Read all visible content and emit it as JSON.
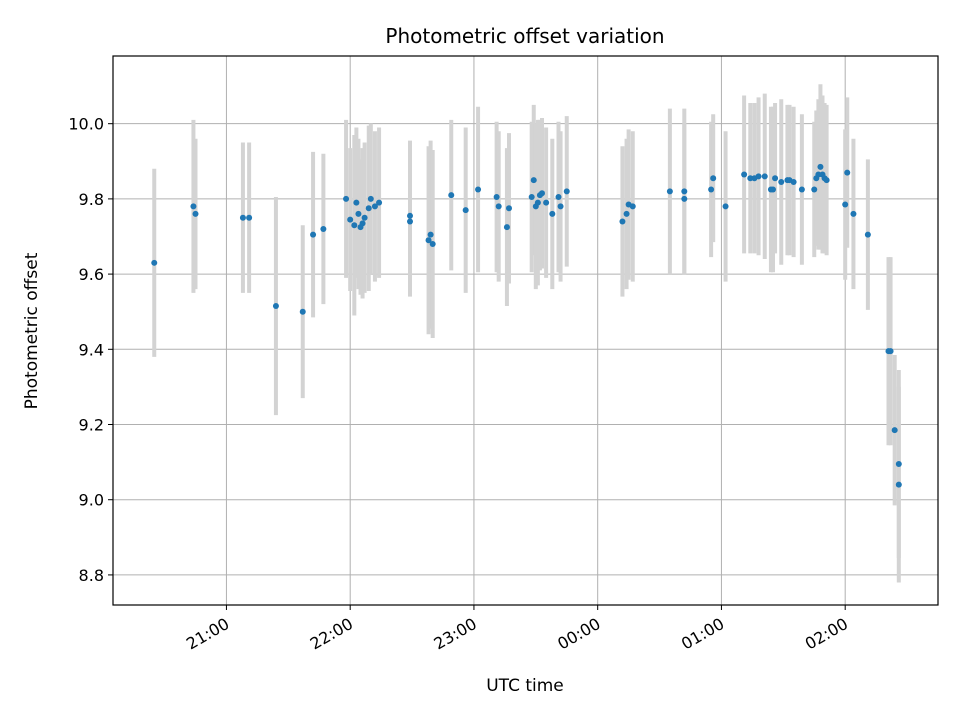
{
  "chart_data": {
    "type": "scatter",
    "title": "Photometric offset variation",
    "xlabel": "UTC time",
    "ylabel": "Photometric offset",
    "x_ticks": [
      "21:00",
      "22:00",
      "23:00",
      "00:00",
      "01:00",
      "02:00"
    ],
    "y_ticks": [
      "8.8",
      "9.0",
      "9.2",
      "9.4",
      "9.6",
      "9.8",
      "10.0"
    ],
    "ylim": [
      8.72,
      10.18
    ],
    "xlim": [
      "20:05",
      "02:45"
    ],
    "grid": true,
    "colors": {
      "marker": "#1f77b4",
      "errorbar": "#d3d3d3",
      "grid": "#b0b0b0"
    },
    "series": [
      {
        "x": [
          "20:25",
          "20:44",
          "20:45",
          "21:08",
          "21:11",
          "21:24",
          "21:37",
          "21:42",
          "21:47",
          "21:58",
          "22:00",
          "22:02",
          "22:03",
          "22:04",
          "22:05",
          "22:06",
          "22:07",
          "22:09",
          "22:10",
          "22:12",
          "22:14",
          "22:29",
          "22:29",
          "22:38",
          "22:39",
          "22:40",
          "22:49",
          "22:56",
          "23:02",
          "23:11",
          "23:12",
          "23:16",
          "23:17",
          "23:28",
          "23:29",
          "23:30",
          "23:31",
          "23:32",
          "23:33",
          "23:35",
          "23:38",
          "23:41",
          "23:42",
          "23:45",
          "00:12",
          "00:14",
          "00:15",
          "00:17",
          "00:35",
          "00:42",
          "00:42",
          "00:55",
          "00:56",
          "01:02",
          "01:11",
          "01:14",
          "01:16",
          "01:18",
          "01:21",
          "01:24",
          "01:25",
          "01:26",
          "01:29",
          "01:32",
          "01:33",
          "01:35",
          "01:39",
          "01:45",
          "01:46",
          "01:47",
          "01:48",
          "01:49",
          "01:50",
          "01:51",
          "02:00",
          "02:01",
          "02:04",
          "02:11",
          "02:21",
          "02:22",
          "02:24",
          "02:26",
          "02:26"
        ],
        "y": [
          9.63,
          9.78,
          9.76,
          9.75,
          9.75,
          9.515,
          9.5,
          9.705,
          9.72,
          9.8,
          9.745,
          9.73,
          9.79,
          9.76,
          9.725,
          9.735,
          9.75,
          9.775,
          9.8,
          9.78,
          9.79,
          9.74,
          9.755,
          9.69,
          9.705,
          9.68,
          9.81,
          9.77,
          9.825,
          9.805,
          9.78,
          9.725,
          9.775,
          9.805,
          9.85,
          9.78,
          9.79,
          9.81,
          9.815,
          9.79,
          9.76,
          9.805,
          9.78,
          9.82,
          9.74,
          9.76,
          9.785,
          9.78,
          9.82,
          9.82,
          9.8,
          9.825,
          9.855,
          9.78,
          9.865,
          9.855,
          9.855,
          9.86,
          9.86,
          9.825,
          9.825,
          9.855,
          9.845,
          9.85,
          9.85,
          9.845,
          9.825,
          9.825,
          9.855,
          9.865,
          9.885,
          9.865,
          9.855,
          9.85,
          9.785,
          9.87,
          9.76,
          9.705,
          9.395,
          9.395,
          9.185,
          9.095,
          9.04
        ],
        "err": [
          0.25,
          0.23,
          0.2,
          0.2,
          0.2,
          0.29,
          0.23,
          0.22,
          0.2,
          0.21,
          0.19,
          0.24,
          0.2,
          0.2,
          0.18,
          0.2,
          0.2,
          0.22,
          0.2,
          0.2,
          0.2,
          0.2,
          0.2,
          0.25,
          0.25,
          0.25,
          0.2,
          0.22,
          0.22,
          0.2,
          0.2,
          0.21,
          0.2,
          0.2,
          0.2,
          0.22,
          0.22,
          0.2,
          0.2,
          0.2,
          0.2,
          0.2,
          0.2,
          0.2,
          0.2,
          0.2,
          0.2,
          0.2,
          0.22,
          0.22,
          0.2,
          0.18,
          0.17,
          0.2,
          0.21,
          0.2,
          0.2,
          0.21,
          0.22,
          0.22,
          0.22,
          0.2,
          0.22,
          0.2,
          0.2,
          0.2,
          0.2,
          0.18,
          0.18,
          0.2,
          0.22,
          0.21,
          0.2,
          0.2,
          0.2,
          0.2,
          0.2,
          0.2,
          0.25,
          0.25,
          0.2,
          0.25,
          0.26
        ]
      }
    ]
  }
}
